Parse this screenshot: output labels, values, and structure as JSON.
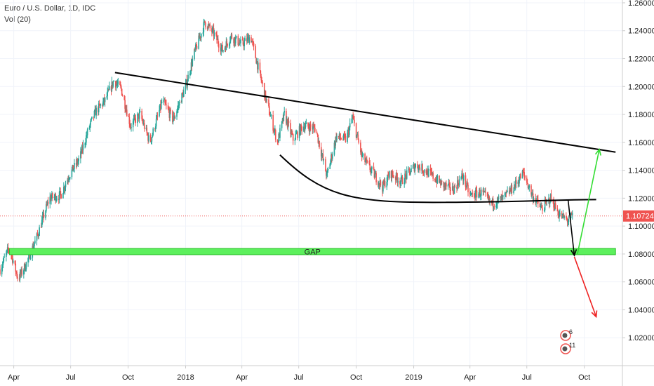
{
  "legend": {
    "title": "Euro / U.S. Dollar, 1D, IDC",
    "indicator": "Vol (20)"
  },
  "colors": {
    "up": "#26a69a",
    "down": "#ef5350",
    "trendline": "#000000",
    "gap_zone": "#5cf05c",
    "gap_border": "#2fbf2f",
    "up_arrow": "#33dd33",
    "down_arrow": "#ee2222",
    "price_tag": "#ef5350",
    "grid": "#f0f3fa",
    "axis": "#cccccc"
  },
  "chart_data": {
    "type": "candlestick",
    "instrument": "Euro / U.S. Dollar",
    "interval": "1D",
    "source": "IDC",
    "x_range": [
      "2017-03-10",
      "2019-12-01"
    ],
    "ylim": [
      1.0,
      1.262
    ],
    "y_ticks": [
      "1.26000",
      "1.24000",
      "1.22000",
      "1.20000",
      "1.18000",
      "1.16000",
      "1.14000",
      "1.12000",
      "1.10000",
      "1.08000",
      "1.06000",
      "1.04000",
      "1.02000"
    ],
    "x_ticks": [
      {
        "label": "Apr",
        "date": "2017-04-01"
      },
      {
        "label": "Jul",
        "date": "2017-07-01"
      },
      {
        "label": "Oct",
        "date": "2017-10-01"
      },
      {
        "label": "2018",
        "date": "2018-01-01"
      },
      {
        "label": "Apr",
        "date": "2018-04-01"
      },
      {
        "label": "Jul",
        "date": "2018-07-01"
      },
      {
        "label": "Oct",
        "date": "2018-10-01"
      },
      {
        "label": "2019",
        "date": "2019-01-01"
      },
      {
        "label": "Apr",
        "date": "2019-04-01"
      },
      {
        "label": "Jul",
        "date": "2019-07-01"
      },
      {
        "label": "Oct",
        "date": "2019-10-01"
      }
    ],
    "price_path": [
      [
        "2017-03-10",
        1.069
      ],
      [
        "2017-03-25",
        1.085
      ],
      [
        "2017-04-08",
        1.062
      ],
      [
        "2017-04-20",
        1.072
      ],
      [
        "2017-05-08",
        1.092
      ],
      [
        "2017-05-28",
        1.12
      ],
      [
        "2017-06-15",
        1.122
      ],
      [
        "2017-06-28",
        1.136
      ],
      [
        "2017-07-15",
        1.148
      ],
      [
        "2017-07-30",
        1.17
      ],
      [
        "2017-08-10",
        1.182
      ],
      [
        "2017-08-25",
        1.19
      ],
      [
        "2017-09-08",
        1.204
      ],
      [
        "2017-09-20",
        1.198
      ],
      [
        "2017-10-05",
        1.172
      ],
      [
        "2017-10-20",
        1.18
      ],
      [
        "2017-11-05",
        1.16
      ],
      [
        "2017-11-25",
        1.19
      ],
      [
        "2017-12-12",
        1.176
      ],
      [
        "2018-01-01",
        1.2
      ],
      [
        "2018-01-15",
        1.224
      ],
      [
        "2018-02-01",
        1.246
      ],
      [
        "2018-02-15",
        1.238
      ],
      [
        "2018-03-01",
        1.226
      ],
      [
        "2018-03-15",
        1.236
      ],
      [
        "2018-04-01",
        1.23
      ],
      [
        "2018-04-15",
        1.236
      ],
      [
        "2018-04-28",
        1.212
      ],
      [
        "2018-05-10",
        1.19
      ],
      [
        "2018-05-28",
        1.16
      ],
      [
        "2018-06-08",
        1.18
      ],
      [
        "2018-06-22",
        1.162
      ],
      [
        "2018-07-08",
        1.172
      ],
      [
        "2018-07-28",
        1.17
      ],
      [
        "2018-08-15",
        1.136
      ],
      [
        "2018-08-30",
        1.164
      ],
      [
        "2018-09-15",
        1.162
      ],
      [
        "2018-09-25",
        1.178
      ],
      [
        "2018-10-10",
        1.15
      ],
      [
        "2018-10-25",
        1.14
      ],
      [
        "2018-11-12",
        1.128
      ],
      [
        "2018-11-25",
        1.138
      ],
      [
        "2018-12-12",
        1.132
      ],
      [
        "2019-01-05",
        1.144
      ],
      [
        "2019-01-25",
        1.138
      ],
      [
        "2019-02-15",
        1.13
      ],
      [
        "2019-03-05",
        1.126
      ],
      [
        "2019-03-20",
        1.136
      ],
      [
        "2019-04-01",
        1.122
      ],
      [
        "2019-04-20",
        1.124
      ],
      [
        "2019-05-05",
        1.116
      ],
      [
        "2019-05-25",
        1.12
      ],
      [
        "2019-06-10",
        1.128
      ],
      [
        "2019-06-25",
        1.138
      ],
      [
        "2019-07-10",
        1.122
      ],
      [
        "2019-07-25",
        1.112
      ],
      [
        "2019-08-08",
        1.12
      ],
      [
        "2019-08-22",
        1.108
      ],
      [
        "2019-09-05",
        1.104
      ],
      [
        "2019-09-12",
        1.107
      ]
    ],
    "last_price": "1.10724",
    "drawings": {
      "descending_trendline": {
        "from": [
          "2017-09-10",
          1.21
        ],
        "to": [
          "2019-11-20",
          1.153
        ]
      },
      "rounded_support": {
        "from": [
          "2018-06-01",
          1.151
        ],
        "low": [
          "2019-02-01",
          1.117
        ],
        "to": [
          "2019-10-20",
          1.119
        ]
      },
      "gap_zone": {
        "from": "2017-03-25",
        "to": "2019-11-20",
        "low": 1.0795,
        "high": 1.084,
        "label": "GAP"
      },
      "drop_arrow": {
        "from": [
          "2019-09-05",
          1.119
        ],
        "to": [
          "2019-09-15",
          1.079
        ]
      },
      "bull_arrow": {
        "from": [
          "2019-09-20",
          1.08
        ],
        "to": [
          "2019-10-25",
          1.155
        ]
      },
      "bear_arrow": {
        "from": [
          "2019-09-15",
          1.078
        ],
        "to": [
          "2019-10-20",
          1.035
        ]
      }
    },
    "events": [
      "6",
      "11"
    ]
  }
}
